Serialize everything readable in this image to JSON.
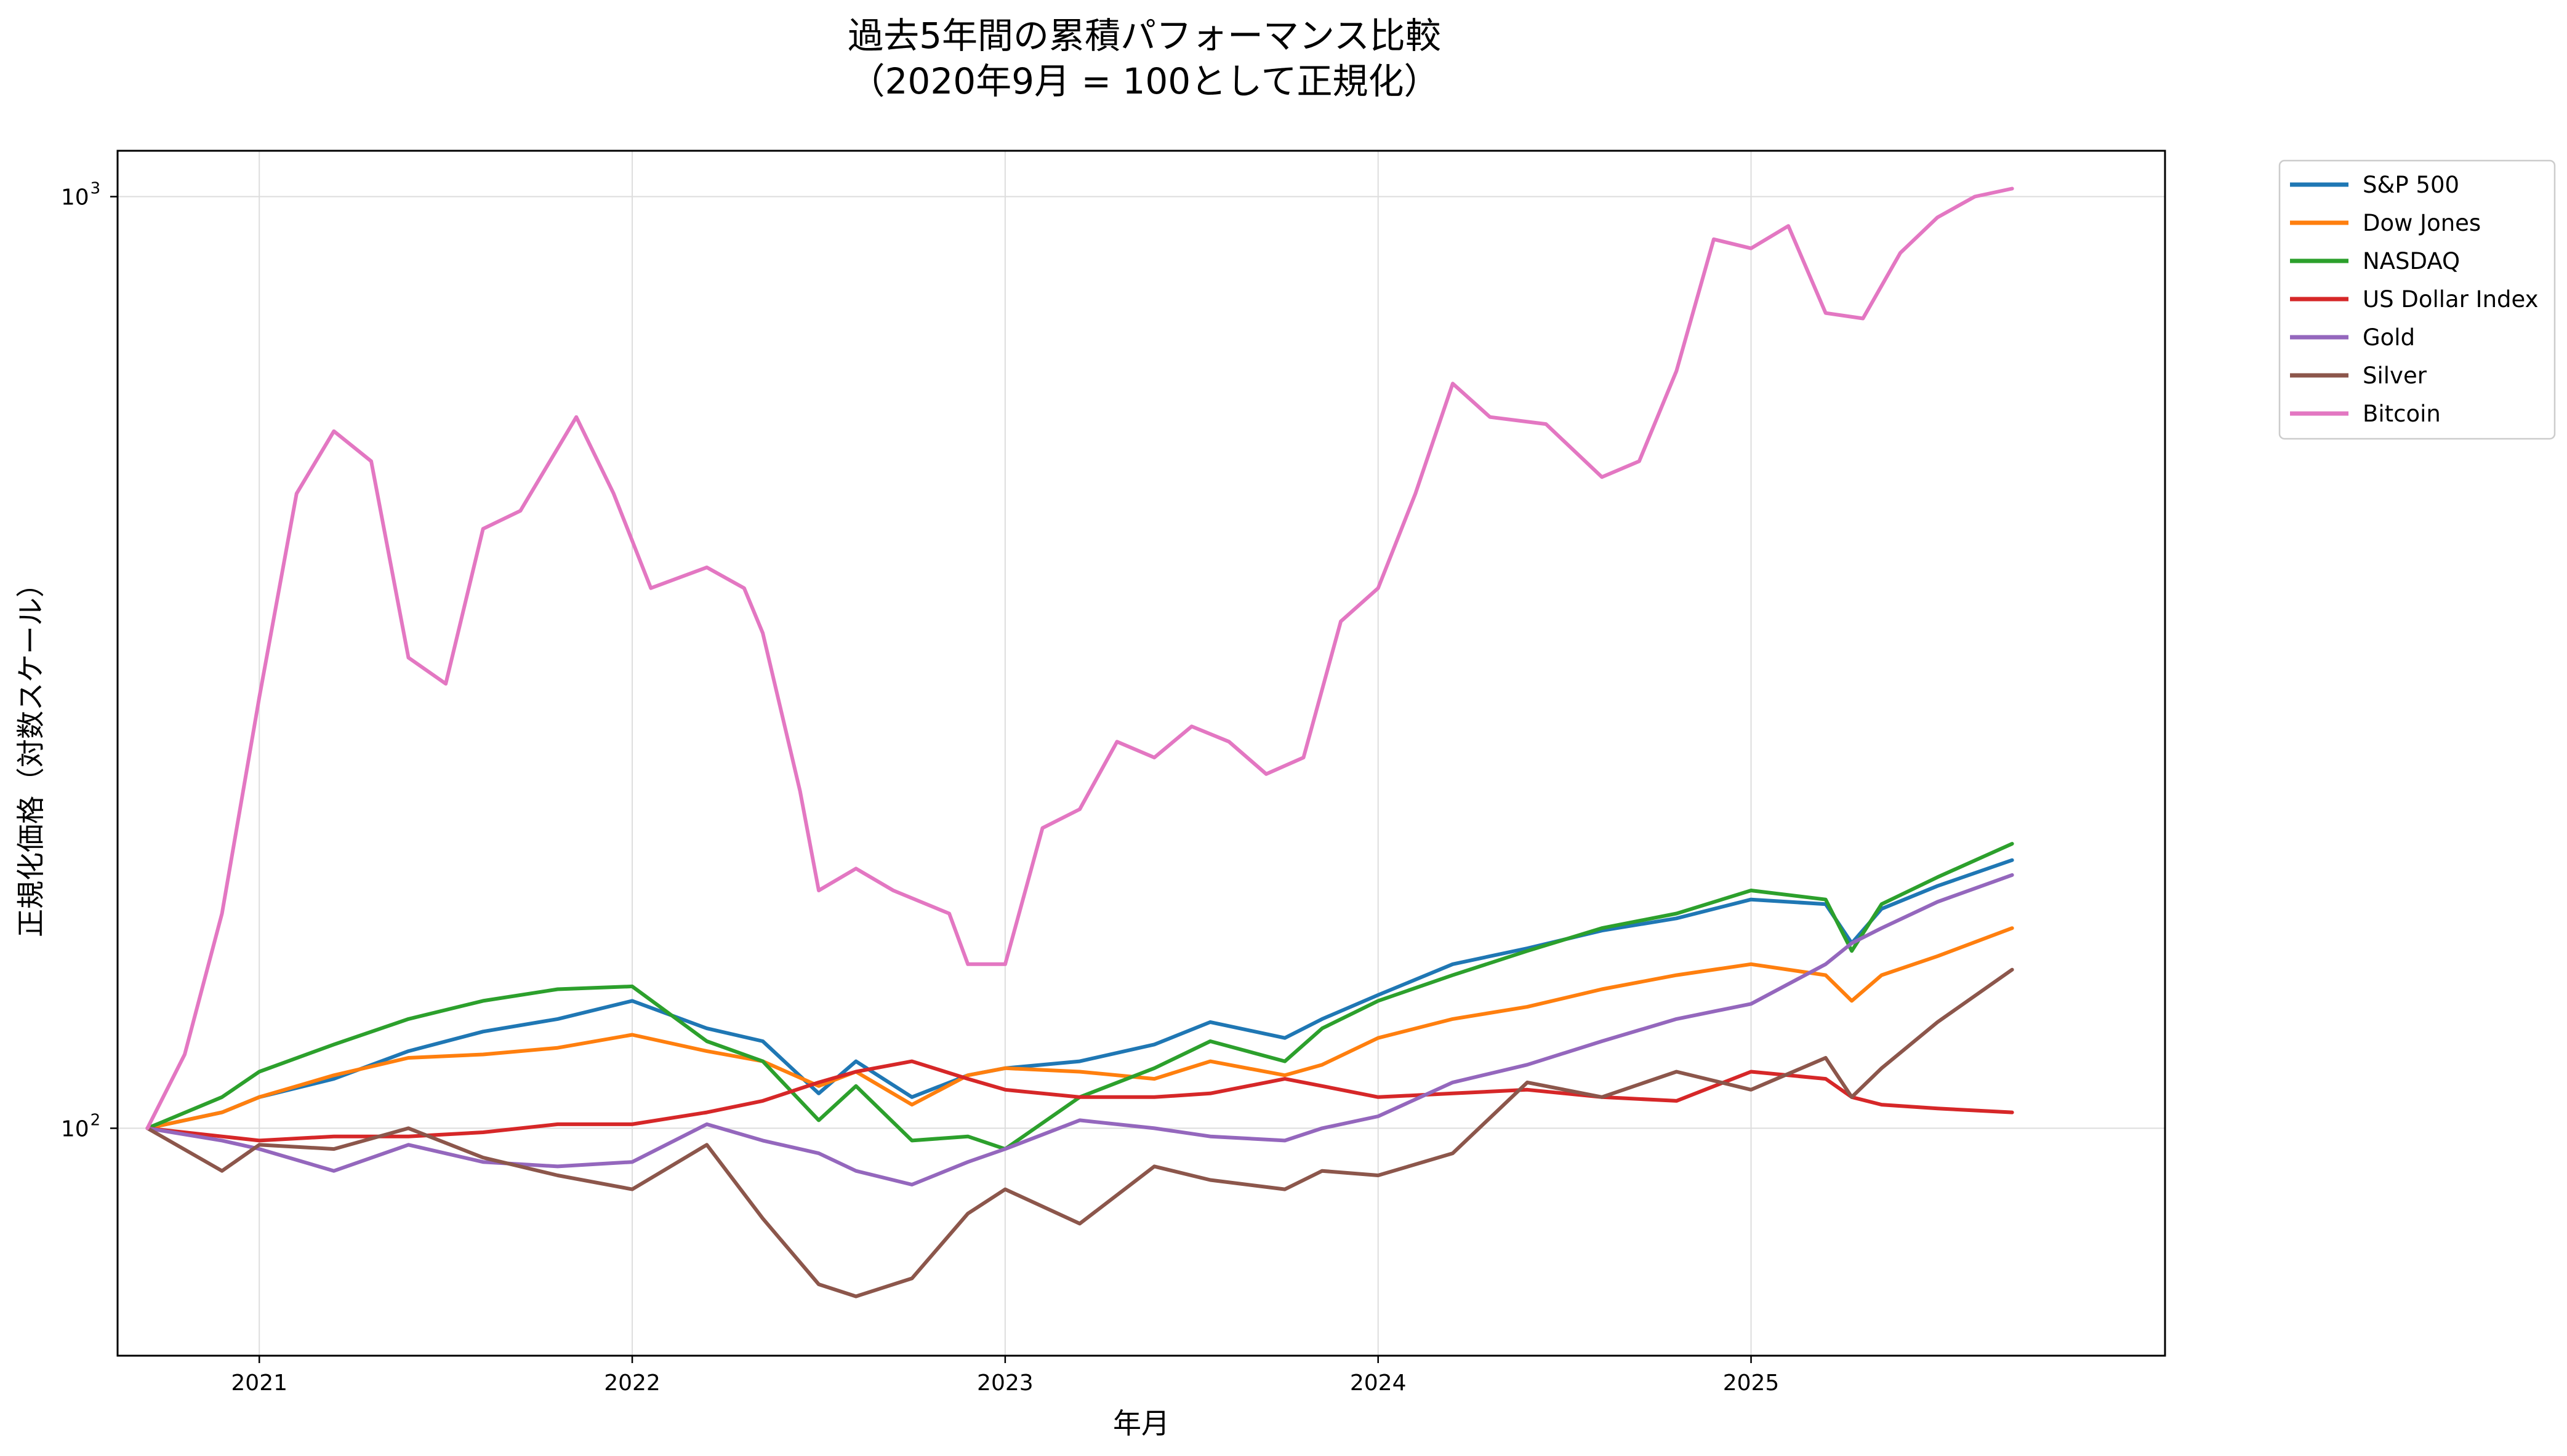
{
  "chart_data": {
    "type": "line",
    "title": "過去5年間の累積パフォーマンス比較",
    "subtitle": "（2020年9月 = 100として正規化）",
    "xlabel": "年月",
    "ylabel": "正規化価格（対数スケール）",
    "y_scale": "log",
    "ylim": [
      57,
      1120
    ],
    "y_ticks": [
      {
        "value": 100,
        "base": "10",
        "exp": "2"
      },
      {
        "value": 1000,
        "base": "10",
        "exp": "3"
      }
    ],
    "x_range": [
      2020.62,
      2026.11
    ],
    "x_ticks": [
      {
        "value": 2021,
        "label": "2021"
      },
      {
        "value": 2022,
        "label": "2022"
      },
      {
        "value": 2023,
        "label": "2023"
      },
      {
        "value": 2024,
        "label": "2024"
      },
      {
        "value": 2025,
        "label": "2025"
      }
    ],
    "grid": true,
    "legend_position": "outside-top-right",
    "series": [
      {
        "name": "S&P 500",
        "color": "#1f77b4",
        "x": [
          2020.7,
          2020.9,
          2021.0,
          2021.2,
          2021.4,
          2021.6,
          2021.8,
          2022.0,
          2022.2,
          2022.35,
          2022.5,
          2022.6,
          2022.75,
          2022.9,
          2023.0,
          2023.2,
          2023.4,
          2023.55,
          2023.75,
          2023.85,
          2024.0,
          2024.2,
          2024.4,
          2024.6,
          2024.8,
          2025.0,
          2025.2,
          2025.27,
          2025.35,
          2025.5,
          2025.7
        ],
        "y": [
          100,
          104,
          108,
          113,
          121,
          127,
          131,
          137,
          128,
          124,
          109,
          118,
          108,
          114,
          116,
          118,
          123,
          130,
          125,
          131,
          139,
          150,
          156,
          163,
          168,
          176,
          174,
          158,
          172,
          182,
          194
        ]
      },
      {
        "name": "Dow Jones",
        "color": "#ff7f0e",
        "x": [
          2020.7,
          2020.9,
          2021.0,
          2021.2,
          2021.4,
          2021.6,
          2021.8,
          2022.0,
          2022.2,
          2022.35,
          2022.5,
          2022.6,
          2022.75,
          2022.9,
          2023.0,
          2023.2,
          2023.4,
          2023.55,
          2023.75,
          2023.85,
          2024.0,
          2024.2,
          2024.4,
          2024.6,
          2024.8,
          2025.0,
          2025.2,
          2025.27,
          2025.35,
          2025.5,
          2025.7
        ],
        "y": [
          100,
          104,
          108,
          114,
          119,
          120,
          122,
          126,
          121,
          118,
          111,
          115,
          106,
          114,
          116,
          115,
          113,
          118,
          114,
          117,
          125,
          131,
          135,
          141,
          146,
          150,
          146,
          137,
          146,
          153,
          164
        ]
      },
      {
        "name": "NASDAQ",
        "color": "#2ca02c",
        "x": [
          2020.7,
          2020.9,
          2021.0,
          2021.2,
          2021.4,
          2021.6,
          2021.8,
          2022.0,
          2022.2,
          2022.35,
          2022.5,
          2022.6,
          2022.75,
          2022.9,
          2023.0,
          2023.2,
          2023.4,
          2023.55,
          2023.75,
          2023.85,
          2024.0,
          2024.2,
          2024.4,
          2024.6,
          2024.8,
          2025.0,
          2025.2,
          2025.27,
          2025.35,
          2025.5,
          2025.7
        ],
        "y": [
          100,
          108,
          115,
          123,
          131,
          137,
          141,
          142,
          124,
          118,
          102,
          111,
          97,
          98,
          95,
          108,
          116,
          124,
          118,
          128,
          137,
          146,
          155,
          164,
          170,
          180,
          176,
          155,
          174,
          186,
          202
        ]
      },
      {
        "name": "US Dollar Index",
        "color": "#d62728",
        "x": [
          2020.7,
          2020.9,
          2021.0,
          2021.2,
          2021.4,
          2021.6,
          2021.8,
          2022.0,
          2022.2,
          2022.35,
          2022.5,
          2022.6,
          2022.75,
          2022.9,
          2023.0,
          2023.2,
          2023.4,
          2023.55,
          2023.75,
          2023.85,
          2024.0,
          2024.2,
          2024.4,
          2024.6,
          2024.8,
          2025.0,
          2025.2,
          2025.27,
          2025.35,
          2025.5,
          2025.7
        ],
        "y": [
          100,
          98,
          97,
          98,
          98,
          99,
          101,
          101,
          104,
          107,
          112,
          115,
          118,
          113,
          110,
          108,
          108,
          109,
          113,
          111,
          108,
          109,
          110,
          108,
          107,
          115,
          113,
          108,
          106,
          105,
          104
        ]
      },
      {
        "name": "Gold",
        "color": "#9467bd",
        "x": [
          2020.7,
          2020.9,
          2021.0,
          2021.2,
          2021.4,
          2021.6,
          2021.8,
          2022.0,
          2022.2,
          2022.35,
          2022.5,
          2022.6,
          2022.75,
          2022.9,
          2023.0,
          2023.2,
          2023.4,
          2023.55,
          2023.75,
          2023.85,
          2024.0,
          2024.2,
          2024.4,
          2024.6,
          2024.8,
          2025.0,
          2025.2,
          2025.27,
          2025.35,
          2025.5,
          2025.7
        ],
        "y": [
          100,
          97,
          95,
          90,
          96,
          92,
          91,
          92,
          101,
          97,
          94,
          90,
          87,
          92,
          95,
          102,
          100,
          98,
          97,
          100,
          103,
          112,
          117,
          124,
          131,
          136,
          150,
          158,
          164,
          175,
          187
        ]
      },
      {
        "name": "Silver",
        "color": "#8c564b",
        "x": [
          2020.7,
          2020.9,
          2021.0,
          2021.2,
          2021.4,
          2021.6,
          2021.8,
          2022.0,
          2022.2,
          2022.35,
          2022.5,
          2022.6,
          2022.75,
          2022.9,
          2023.0,
          2023.2,
          2023.4,
          2023.55,
          2023.75,
          2023.85,
          2024.0,
          2024.2,
          2024.4,
          2024.6,
          2024.8,
          2025.0,
          2025.2,
          2025.27,
          2025.35,
          2025.5,
          2025.7
        ],
        "y": [
          100,
          90,
          96,
          95,
          100,
          93,
          89,
          86,
          96,
          80,
          68,
          66,
          69,
          81,
          86,
          79,
          91,
          88,
          86,
          90,
          89,
          94,
          112,
          108,
          115,
          110,
          119,
          108,
          116,
          130,
          148
        ]
      },
      {
        "name": "Bitcoin",
        "color": "#e377c2",
        "x": [
          2020.7,
          2020.8,
          2020.9,
          2021.0,
          2021.1,
          2021.2,
          2021.3,
          2021.4,
          2021.5,
          2021.6,
          2021.7,
          2021.85,
          2021.95,
          2022.05,
          2022.2,
          2022.3,
          2022.35,
          2022.45,
          2022.5,
          2022.6,
          2022.7,
          2022.85,
          2022.9,
          2023.0,
          2023.1,
          2023.2,
          2023.3,
          2023.4,
          2023.5,
          2023.6,
          2023.7,
          2023.8,
          2023.9,
          2024.0,
          2024.1,
          2024.2,
          2024.3,
          2024.45,
          2024.6,
          2024.7,
          2024.8,
          2024.9,
          2025.0,
          2025.1,
          2025.2,
          2025.3,
          2025.4,
          2025.5,
          2025.6,
          2025.7
        ],
        "y": [
          100,
          120,
          170,
          290,
          480,
          560,
          520,
          320,
          300,
          440,
          460,
          580,
          480,
          380,
          400,
          380,
          340,
          230,
          180,
          190,
          180,
          170,
          150,
          150,
          210,
          220,
          260,
          250,
          270,
          260,
          240,
          250,
          350,
          380,
          480,
          630,
          580,
          570,
          500,
          520,
          650,
          900,
          880,
          930,
          750,
          740,
          870,
          950,
          1000,
          1020
        ]
      }
    ]
  }
}
